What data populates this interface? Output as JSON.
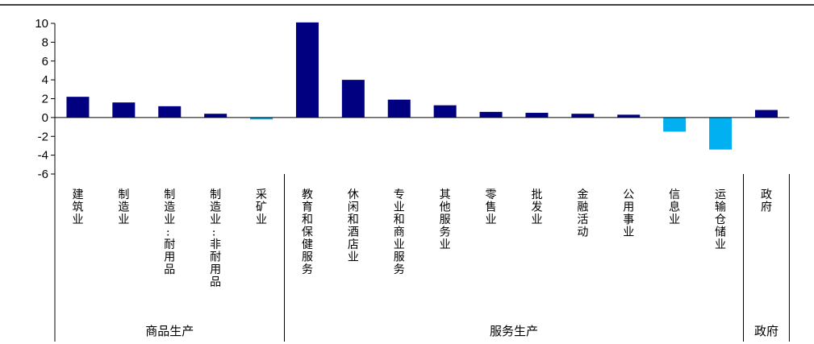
{
  "chart_data": {
    "type": "bar",
    "title": "",
    "xlabel": "",
    "ylabel": "",
    "ylim": [
      -6,
      10
    ],
    "yticks": [
      10,
      8,
      6,
      4,
      2,
      0,
      -2,
      -4,
      -6
    ],
    "grid": false,
    "categories": [
      "建筑业",
      "制造业",
      "制造业:耐用品",
      "制造业:非耐用品",
      "采矿业",
      "教育和保健服务",
      "休闲和酒店业",
      "专业和商业服务",
      "其他服务业",
      "零售业",
      "批发业",
      "金融活动",
      "公用事业",
      "信息业",
      "运输仓储业",
      "政府"
    ],
    "values": [
      2.2,
      1.6,
      1.2,
      0.4,
      -0.2,
      10.1,
      4.0,
      1.9,
      1.3,
      0.6,
      0.5,
      0.4,
      0.3,
      -1.5,
      -3.4,
      0.8
    ],
    "groups": [
      {
        "label": "商品生产",
        "count": 5
      },
      {
        "label": "服务生产",
        "count": 10
      },
      {
        "label": "政府",
        "count": 1
      }
    ],
    "colors": {
      "positive": "#000080",
      "negative": "#00B0F0",
      "axis": "#000000"
    }
  }
}
